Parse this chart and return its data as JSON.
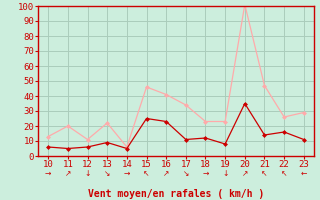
{
  "x": [
    10,
    11,
    12,
    13,
    14,
    15,
    16,
    17,
    18,
    19,
    20,
    21,
    22,
    23
  ],
  "y_avg": [
    6,
    5,
    6,
    9,
    5,
    25,
    23,
    11,
    12,
    8,
    35,
    14,
    16,
    11
  ],
  "y_gust": [
    13,
    20,
    11,
    22,
    6,
    46,
    41,
    34,
    23,
    23,
    101,
    47,
    26,
    29
  ],
  "wind_symbols": [
    "→",
    "↗",
    "↓",
    "↘",
    "→",
    "↖",
    "↗",
    "↘",
    "→",
    "↓",
    "↗",
    "↖",
    "↖",
    "←"
  ],
  "line_color_avg": "#cc0000",
  "line_color_gust": "#ffaaaa",
  "marker_color_avg": "#cc0000",
  "marker_color_gust": "#ffaaaa",
  "bg_color": "#cceedd",
  "grid_color": "#aaccbb",
  "xlabel": "Vent moyen/en rafales ( km/h )",
  "xlabel_color": "#cc0000",
  "ylim": [
    0,
    100
  ],
  "yticks": [
    0,
    10,
    20,
    30,
    40,
    50,
    60,
    70,
    80,
    90,
    100
  ],
  "xticks": [
    10,
    11,
    12,
    13,
    14,
    15,
    16,
    17,
    18,
    19,
    20,
    21,
    22,
    23
  ],
  "tick_color": "#cc0000",
  "spine_color": "#cc0000",
  "marker_size": 2.5,
  "line_width": 0.9
}
